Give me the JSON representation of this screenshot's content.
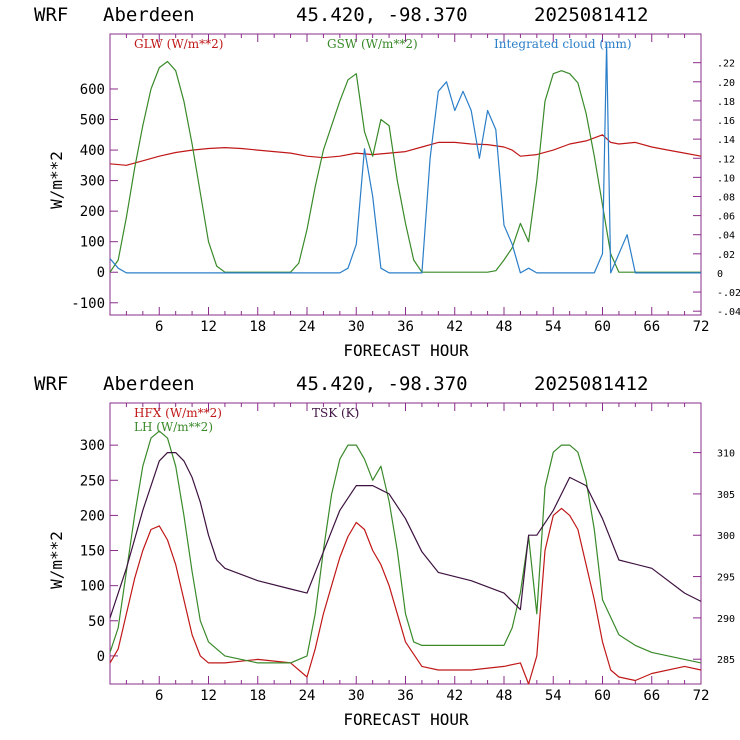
{
  "panels": [
    {
      "header": {
        "model": "WRF",
        "site": "Aberdeen",
        "coords": "45.420, -98.370",
        "date": "2025081412"
      },
      "frame_color": "#8a2c8a",
      "y_ticks": [
        "-100",
        "0",
        "100",
        "200",
        "300",
        "400",
        "500",
        "600"
      ],
      "right_ticks": [
        "-.04",
        "-.02",
        "0",
        ".02",
        ".04",
        ".06",
        ".08",
        ".10",
        ".12",
        ".14",
        ".16",
        ".18",
        ".20",
        ".22"
      ],
      "x_ticks": [
        "6",
        "12",
        "18",
        "24",
        "30",
        "36",
        "42",
        "48",
        "54",
        "60",
        "66",
        "72"
      ],
      "ylabel": "W/m**2",
      "xlabel": "FORECAST HOUR"
    },
    {
      "header": {
        "model": "WRF",
        "site": "Aberdeen",
        "coords": "45.420, -98.370",
        "date": "2025081412"
      },
      "frame_color": "#8a2c8a",
      "y_ticks": [
        "0",
        "50",
        "100",
        "150",
        "200",
        "250",
        "300"
      ],
      "right_ticks": [
        "285",
        "290",
        "295",
        "300",
        "305",
        "310"
      ],
      "x_ticks": [
        "6",
        "12",
        "18",
        "24",
        "30",
        "36",
        "42",
        "48",
        "54",
        "60",
        "66",
        "72"
      ],
      "ylabel": "W/m**2",
      "xlabel": "FORECAST HOUR"
    }
  ],
  "chart_data": [
    {
      "type": "line",
      "title": "WRF Aberdeen 45.420, -98.370 2025081412",
      "xlabel": "FORECAST HOUR",
      "ylabel": "W/m**2",
      "xlim": [
        0,
        72
      ],
      "ylim": [
        -140,
        780
      ],
      "y2lim": [
        -0.044,
        0.25
      ],
      "grid": false,
      "series": [
        {
          "name": "GLW (W/m**2)",
          "color": "#c01818",
          "axis": "left",
          "x": [
            0,
            2,
            4,
            6,
            8,
            10,
            12,
            14,
            16,
            18,
            20,
            22,
            24,
            26,
            28,
            30,
            32,
            34,
            36,
            38,
            40,
            42,
            44,
            46,
            48,
            49,
            50,
            52,
            54,
            56,
            58,
            60,
            61,
            62,
            64,
            66,
            68,
            70,
            72
          ],
          "values": [
            355,
            350,
            365,
            380,
            392,
            400,
            405,
            408,
            405,
            400,
            395,
            390,
            380,
            375,
            380,
            390,
            385,
            390,
            395,
            410,
            425,
            425,
            420,
            418,
            410,
            400,
            380,
            385,
            400,
            420,
            430,
            450,
            425,
            420,
            425,
            410,
            400,
            390,
            380
          ]
        },
        {
          "name": "GSW (W/m**2)",
          "color": "#3a8a2a",
          "axis": "left",
          "x": [
            0,
            1,
            2,
            3,
            4,
            5,
            6,
            7,
            8,
            9,
            10,
            11,
            12,
            13,
            14,
            22,
            23,
            24,
            25,
            26,
            27,
            28,
            29,
            30,
            31,
            32,
            33,
            34,
            35,
            36,
            37,
            38,
            39,
            40,
            46,
            47,
            48,
            49,
            50,
            51,
            52,
            53,
            54,
            55,
            56,
            57,
            58,
            59,
            60,
            61,
            62,
            72
          ],
          "values": [
            0,
            40,
            180,
            340,
            480,
            600,
            670,
            690,
            660,
            560,
            420,
            260,
            100,
            20,
            0,
            0,
            30,
            140,
            280,
            400,
            480,
            560,
            630,
            650,
            460,
            380,
            500,
            480,
            300,
            160,
            40,
            0,
            0,
            0,
            0,
            5,
            40,
            80,
            160,
            100,
            300,
            560,
            650,
            660,
            650,
            620,
            520,
            380,
            220,
            60,
            0,
            0
          ]
        },
        {
          "name": "Integrated cloud (mm)",
          "color": "#2a7ec8",
          "axis": "right",
          "x": [
            0,
            1,
            2,
            28,
            29,
            30,
            31,
            32,
            33,
            34,
            35,
            36,
            37,
            38,
            39,
            40,
            41,
            42,
            43,
            44,
            45,
            46,
            47,
            48,
            49,
            50,
            51,
            52,
            54,
            56,
            58,
            59,
            60,
            60.5,
            61,
            62,
            63,
            64,
            66,
            72
          ],
          "values": [
            0.015,
            0.005,
            0,
            0,
            0.005,
            0.03,
            0.13,
            0.08,
            0.005,
            0,
            0,
            0,
            0,
            0,
            0.12,
            0.19,
            0.2,
            0.17,
            0.19,
            0.17,
            0.12,
            0.17,
            0.15,
            0.05,
            0.03,
            0,
            0.005,
            0,
            0,
            0,
            0,
            0,
            0.02,
            0.24,
            0,
            0.02,
            0.04,
            0,
            0,
            0
          ]
        }
      ]
    },
    {
      "type": "line",
      "title": "WRF Aberdeen 45.420, -98.370 2025081412",
      "xlabel": "FORECAST HOUR",
      "ylabel": "W/m**2",
      "xlim": [
        0,
        72
      ],
      "ylim": [
        -40,
        360
      ],
      "y2lim": [
        282,
        316
      ],
      "grid": false,
      "series": [
        {
          "name": "HFX (W/m**2)",
          "color": "#c01818",
          "axis": "left",
          "x": [
            0,
            1,
            2,
            3,
            4,
            5,
            6,
            7,
            8,
            9,
            10,
            11,
            12,
            14,
            18,
            22,
            24,
            25,
            26,
            27,
            28,
            29,
            30,
            31,
            32,
            33,
            34,
            35,
            36,
            38,
            40,
            44,
            48,
            50,
            51,
            52,
            53,
            54,
            55,
            56,
            57,
            58,
            59,
            60,
            61,
            62,
            64,
            66,
            70,
            72
          ],
          "values": [
            -10,
            10,
            60,
            110,
            150,
            180,
            185,
            165,
            130,
            80,
            30,
            0,
            -10,
            -10,
            -5,
            -10,
            -30,
            10,
            60,
            100,
            140,
            170,
            190,
            180,
            150,
            130,
            100,
            60,
            20,
            -15,
            -20,
            -20,
            -15,
            -10,
            -40,
            0,
            150,
            200,
            210,
            200,
            180,
            130,
            80,
            20,
            -20,
            -30,
            -35,
            -25,
            -15,
            -20
          ]
        },
        {
          "name": "LH (W/m**2)",
          "color": "#3a8a2a",
          "axis": "left",
          "x": [
            0,
            1,
            2,
            3,
            4,
            5,
            6,
            7,
            8,
            9,
            10,
            11,
            12,
            13,
            14,
            16,
            18,
            22,
            24,
            25,
            26,
            27,
            28,
            29,
            30,
            31,
            32,
            33,
            34,
            35,
            36,
            37,
            38,
            40,
            44,
            48,
            49,
            50,
            51,
            52,
            53,
            54,
            55,
            56,
            57,
            58,
            59,
            60,
            62,
            64,
            66,
            70,
            72
          ],
          "values": [
            5,
            40,
            120,
            200,
            270,
            310,
            320,
            310,
            270,
            200,
            120,
            50,
            20,
            10,
            0,
            -5,
            -10,
            -10,
            0,
            60,
            150,
            230,
            280,
            300,
            300,
            280,
            250,
            270,
            220,
            150,
            60,
            20,
            15,
            15,
            15,
            15,
            40,
            90,
            170,
            60,
            240,
            290,
            300,
            300,
            290,
            250,
            180,
            80,
            30,
            15,
            5,
            -5,
            -10
          ]
        },
        {
          "name": "TSK (K)",
          "color": "#3d1240",
          "axis": "right",
          "x": [
            0,
            2,
            4,
            6,
            7,
            8,
            9,
            10,
            11,
            12,
            13,
            14,
            18,
            22,
            24,
            26,
            28,
            30,
            32,
            34,
            36,
            38,
            40,
            44,
            48,
            50,
            51,
            52,
            54,
            56,
            58,
            60,
            62,
            66,
            70,
            72
          ],
          "values": [
            290,
            296,
            303,
            309,
            310,
            310,
            309,
            307,
            304,
            300,
            297,
            296,
            294.5,
            293.5,
            293,
            298,
            303,
            306,
            306,
            305,
            302,
            298,
            295.5,
            294.5,
            293,
            291,
            300,
            300,
            303,
            307,
            306,
            302,
            297,
            296,
            293,
            292
          ]
        }
      ]
    }
  ]
}
